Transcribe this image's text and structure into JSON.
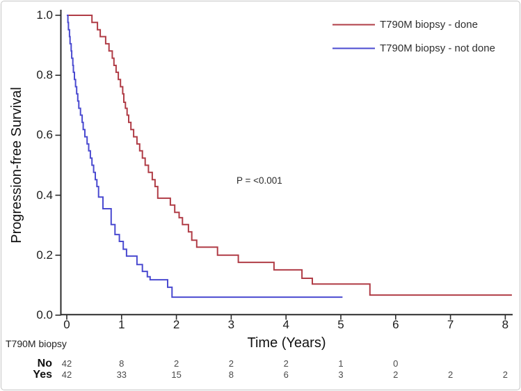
{
  "figure": {
    "background": "#ffffff",
    "border_color": "#c6c6c6",
    "axis_color": "#2b2b2b"
  },
  "chart_data": {
    "type": "line",
    "subtype": "kaplan_meier_step",
    "title": "",
    "xlabel": "Time (Years)",
    "ylabel": "Progression-free Survival",
    "xlim": [
      0,
      8
    ],
    "ylim": [
      0.0,
      1.0
    ],
    "x_ticks": [
      "0",
      "1",
      "2",
      "3",
      "4",
      "5",
      "6",
      "7",
      "8"
    ],
    "y_ticks": [
      "0.0",
      "0.2",
      "0.4",
      "0.6",
      "0.8",
      "1.0"
    ],
    "grid": false,
    "legend_position": "top-right",
    "annotation": "P = <0.001",
    "series": [
      {
        "name": "T790M biopsy - done",
        "color": "#b03c46",
        "points": [
          [
            0,
            1.0
          ],
          [
            0.46,
            0.976
          ],
          [
            0.56,
            0.952
          ],
          [
            0.61,
            0.929
          ],
          [
            0.71,
            0.905
          ],
          [
            0.77,
            0.881
          ],
          [
            0.83,
            0.857
          ],
          [
            0.86,
            0.833
          ],
          [
            0.9,
            0.81
          ],
          [
            0.94,
            0.786
          ],
          [
            0.98,
            0.762
          ],
          [
            1.02,
            0.738
          ],
          [
            1.04,
            0.71
          ],
          [
            1.07,
            0.69
          ],
          [
            1.1,
            0.667
          ],
          [
            1.13,
            0.643
          ],
          [
            1.17,
            0.619
          ],
          [
            1.22,
            0.595
          ],
          [
            1.28,
            0.571
          ],
          [
            1.33,
            0.548
          ],
          [
            1.38,
            0.524
          ],
          [
            1.43,
            0.5
          ],
          [
            1.49,
            0.476
          ],
          [
            1.56,
            0.452
          ],
          [
            1.61,
            0.429
          ],
          [
            1.66,
            0.39
          ],
          [
            1.89,
            0.367
          ],
          [
            1.97,
            0.343
          ],
          [
            2.05,
            0.325
          ],
          [
            2.11,
            0.302
          ],
          [
            2.22,
            0.278
          ],
          [
            2.28,
            0.25
          ],
          [
            2.37,
            0.227
          ],
          [
            2.75,
            0.2
          ],
          [
            3.13,
            0.176
          ],
          [
            3.78,
            0.151
          ],
          [
            4.29,
            0.123
          ],
          [
            4.48,
            0.104
          ],
          [
            5.53,
            0.067
          ],
          [
            8.12,
            0.067
          ]
        ]
      },
      {
        "name": "T790M biopsy - not done",
        "color": "#4a4ad0",
        "points": [
          [
            0,
            1.0
          ],
          [
            0.02,
            0.976
          ],
          [
            0.03,
            0.952
          ],
          [
            0.05,
            0.929
          ],
          [
            0.06,
            0.905
          ],
          [
            0.08,
            0.881
          ],
          [
            0.09,
            0.857
          ],
          [
            0.11,
            0.833
          ],
          [
            0.12,
            0.81
          ],
          [
            0.14,
            0.786
          ],
          [
            0.16,
            0.762
          ],
          [
            0.18,
            0.738
          ],
          [
            0.2,
            0.714
          ],
          [
            0.22,
            0.69
          ],
          [
            0.25,
            0.667
          ],
          [
            0.28,
            0.643
          ],
          [
            0.3,
            0.619
          ],
          [
            0.33,
            0.595
          ],
          [
            0.37,
            0.571
          ],
          [
            0.4,
            0.548
          ],
          [
            0.43,
            0.524
          ],
          [
            0.46,
            0.5
          ],
          [
            0.49,
            0.476
          ],
          [
            0.52,
            0.452
          ],
          [
            0.55,
            0.429
          ],
          [
            0.58,
            0.394
          ],
          [
            0.66,
            0.355
          ],
          [
            0.81,
            0.302
          ],
          [
            0.88,
            0.269
          ],
          [
            0.96,
            0.246
          ],
          [
            1.03,
            0.22
          ],
          [
            1.09,
            0.197
          ],
          [
            1.28,
            0.169
          ],
          [
            1.38,
            0.146
          ],
          [
            1.47,
            0.128
          ],
          [
            1.52,
            0.118
          ],
          [
            1.84,
            0.093
          ],
          [
            1.92,
            0.06
          ],
          [
            5.03,
            0.06
          ]
        ]
      }
    ]
  },
  "risk_table": {
    "group_label": "T790M biopsy",
    "times": [
      0,
      1,
      2,
      3,
      4,
      5,
      6,
      7,
      8
    ],
    "rows": [
      {
        "label": "No",
        "counts": [
          "42",
          "8",
          "2",
          "2",
          "2",
          "1",
          "0",
          "",
          ""
        ]
      },
      {
        "label": "Yes",
        "counts": [
          "42",
          "33",
          "15",
          "8",
          "6",
          "3",
          "2",
          "2",
          "2"
        ]
      }
    ]
  }
}
